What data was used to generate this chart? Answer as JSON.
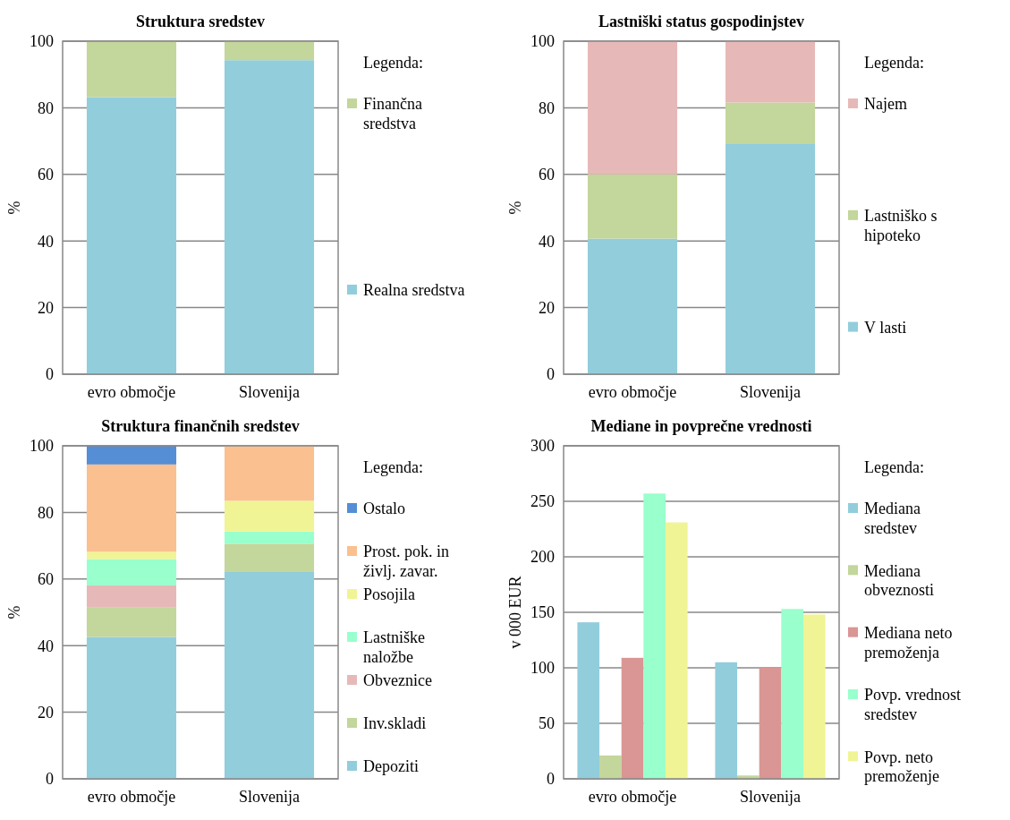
{
  "chart_data": [
    {
      "type": "bar",
      "title": "Struktura sredstev",
      "ylabel": "%",
      "legend_title": "Legenda:",
      "categories": [
        "evro območje",
        "Slovenija"
      ],
      "stacked": true,
      "ylim": [
        0,
        100
      ],
      "yticks": [
        0,
        20,
        40,
        60,
        80,
        100
      ],
      "grid": "y",
      "legend": "right",
      "series": [
        {
          "name": "Realna sredstva",
          "color": "#92cddc",
          "values": [
            83.2,
            94.3
          ]
        },
        {
          "name": "Finančna sredstva",
          "color": "#c3d69b",
          "values": [
            16.8,
            5.7
          ]
        }
      ]
    },
    {
      "type": "bar",
      "title": "Lastniški status gospodinjstev",
      "ylabel": "%",
      "legend_title": "Legenda:",
      "categories": [
        "evro območje",
        "Slovenija"
      ],
      "stacked": true,
      "ylim": [
        0,
        100
      ],
      "yticks": [
        0,
        20,
        40,
        60,
        80,
        100
      ],
      "grid": "y",
      "legend": "right",
      "series": [
        {
          "name": "V lasti",
          "color": "#92cddc",
          "values": [
            40.7,
            69.3
          ]
        },
        {
          "name": "Lastniško s hipoteko",
          "color": "#c3d69b",
          "values": [
            19.3,
            12.3
          ]
        },
        {
          "name": "Najem",
          "color": "#e6b9b8",
          "values": [
            40,
            18.4
          ]
        }
      ]
    },
    {
      "type": "bar",
      "title": "Struktura finančnih sredstev",
      "ylabel": "%",
      "legend_title": "Legenda:",
      "categories": [
        "evro območje",
        "Slovenija"
      ],
      "stacked": true,
      "ylim": [
        0,
        100
      ],
      "yticks": [
        0,
        20,
        40,
        60,
        80,
        100
      ],
      "grid": "y",
      "legend": "right",
      "series": [
        {
          "name": "Depoziti",
          "color": "#92cddc",
          "values": [
            42.6,
            62.1
          ]
        },
        {
          "name": "Inv.skladi",
          "color": "#c3d69b",
          "values": [
            8.8,
            8.5
          ]
        },
        {
          "name": "Obveznice",
          "color": "#e6b9b8",
          "values": [
            6.7,
            0
          ]
        },
        {
          "name": "Lastniške naložbe",
          "color": "#99ffcc",
          "values": [
            7.9,
            3.7
          ]
        },
        {
          "name": "Posojila",
          "color": "#f0f495",
          "values": [
            2.2,
            9.2
          ]
        },
        {
          "name": "Prost. pok. in življ. zavar.",
          "color": "#fac090",
          "values": [
            26.2,
            16.5
          ]
        },
        {
          "name": "Ostalo",
          "color": "#558ed5",
          "values": [
            5.6,
            0
          ]
        }
      ]
    },
    {
      "type": "bar",
      "title": "Mediane in povprečne vrednosti",
      "ylabel": "v 000 EUR",
      "legend_title": "Legenda:",
      "categories": [
        "evro območje",
        "Slovenija"
      ],
      "ylim": [
        0,
        300
      ],
      "yticks": [
        0,
        50,
        100,
        150,
        200,
        250,
        300
      ],
      "grid": "y",
      "legend": "right",
      "series": [
        {
          "name": "Mediana sredstev",
          "color": "#92cddc",
          "values": [
            141,
            105
          ]
        },
        {
          "name": "Mediana obveznosti",
          "color": "#c3d69b",
          "values": [
            21,
            3
          ]
        },
        {
          "name": "Mediana neto premoženja",
          "color": "#d99694",
          "values": [
            109,
            100
          ]
        },
        {
          "name": "Povp. vrednost sredstev",
          "color": "#99ffcc",
          "values": [
            257,
            153
          ]
        },
        {
          "name": "Povp. neto premoženje",
          "color": "#f0f495",
          "values": [
            231,
            148
          ]
        }
      ]
    }
  ]
}
